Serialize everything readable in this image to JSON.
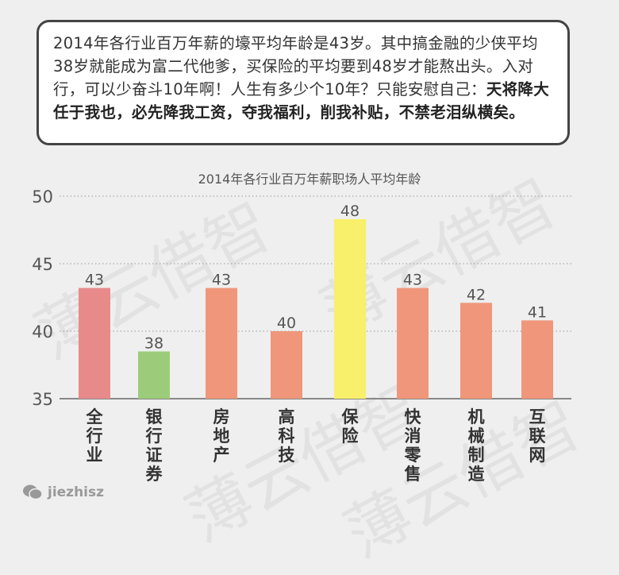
{
  "note": {
    "text": "2014年各行业百万年薪的壕平均年龄是43岁。其中搞金融的少侠平均38岁就能成为富二代他爹，买保险的平均要到48岁才能熬出头。入对行，可以少奋斗10年啊！人生有多少个10年？只能安慰自己：",
    "bold": "天将降大任于我也，必先降我工资，夺我福利，削我补贴，不禁老泪纵横矣。"
  },
  "watermark": "薄云借智",
  "brand": {
    "icon": "wechat-icon",
    "text": "jiezhisz"
  },
  "chart_data": {
    "type": "bar",
    "title": "2014年各行业百万年薪职场人平均年龄",
    "categories": [
      "全行业",
      "银行证券",
      "房地产",
      "高科技",
      "保险",
      "快消零售",
      "机械制造",
      "互联网"
    ],
    "values": [
      43.2,
      38.5,
      43.2,
      40.0,
      48.3,
      43.2,
      42.1,
      40.8
    ],
    "data_labels": [
      "43",
      "38",
      "43",
      "40",
      "48",
      "43",
      "42",
      "41"
    ],
    "colors": [
      "#e88a8a",
      "#9ccc7a",
      "#f0967a",
      "#f0967a",
      "#f8ef6a",
      "#f0967a",
      "#f0967a",
      "#f0967a"
    ],
    "ylim": [
      35,
      50
    ],
    "yticks": [
      "35",
      "40",
      "45",
      "50"
    ],
    "grid": true,
    "xlabel": "",
    "ylabel": ""
  }
}
